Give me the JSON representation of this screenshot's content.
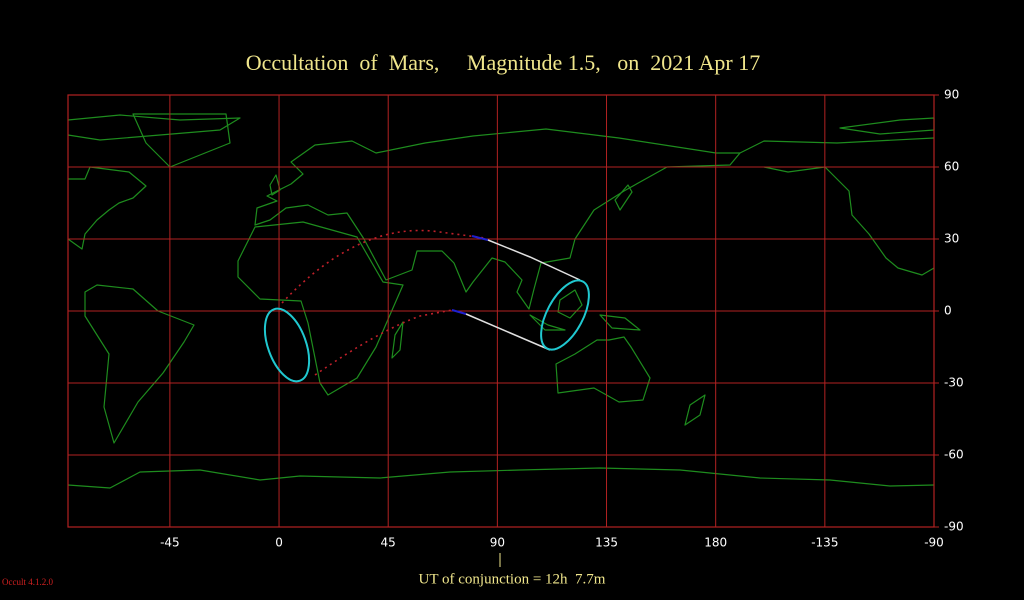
{
  "map": {
    "title": "Occultation  of  Mars,     Magnitude 1.5,   on  2021 Apr 17",
    "xlim": [
      -87,
      270
    ],
    "ylim": [
      -90,
      90
    ],
    "xticks": [
      -45,
      0,
      45,
      90,
      135,
      180,
      {
        "value": 225,
        "label": "-135"
      },
      {
        "value": 270,
        "label": "-90"
      }
    ],
    "yticks": [
      90,
      60,
      30,
      0,
      -30,
      -60,
      -90
    ],
    "conjunction_label": "UT of conjunction = 12h  7.7m"
  },
  "version": "Occult 4.1.2.0"
}
